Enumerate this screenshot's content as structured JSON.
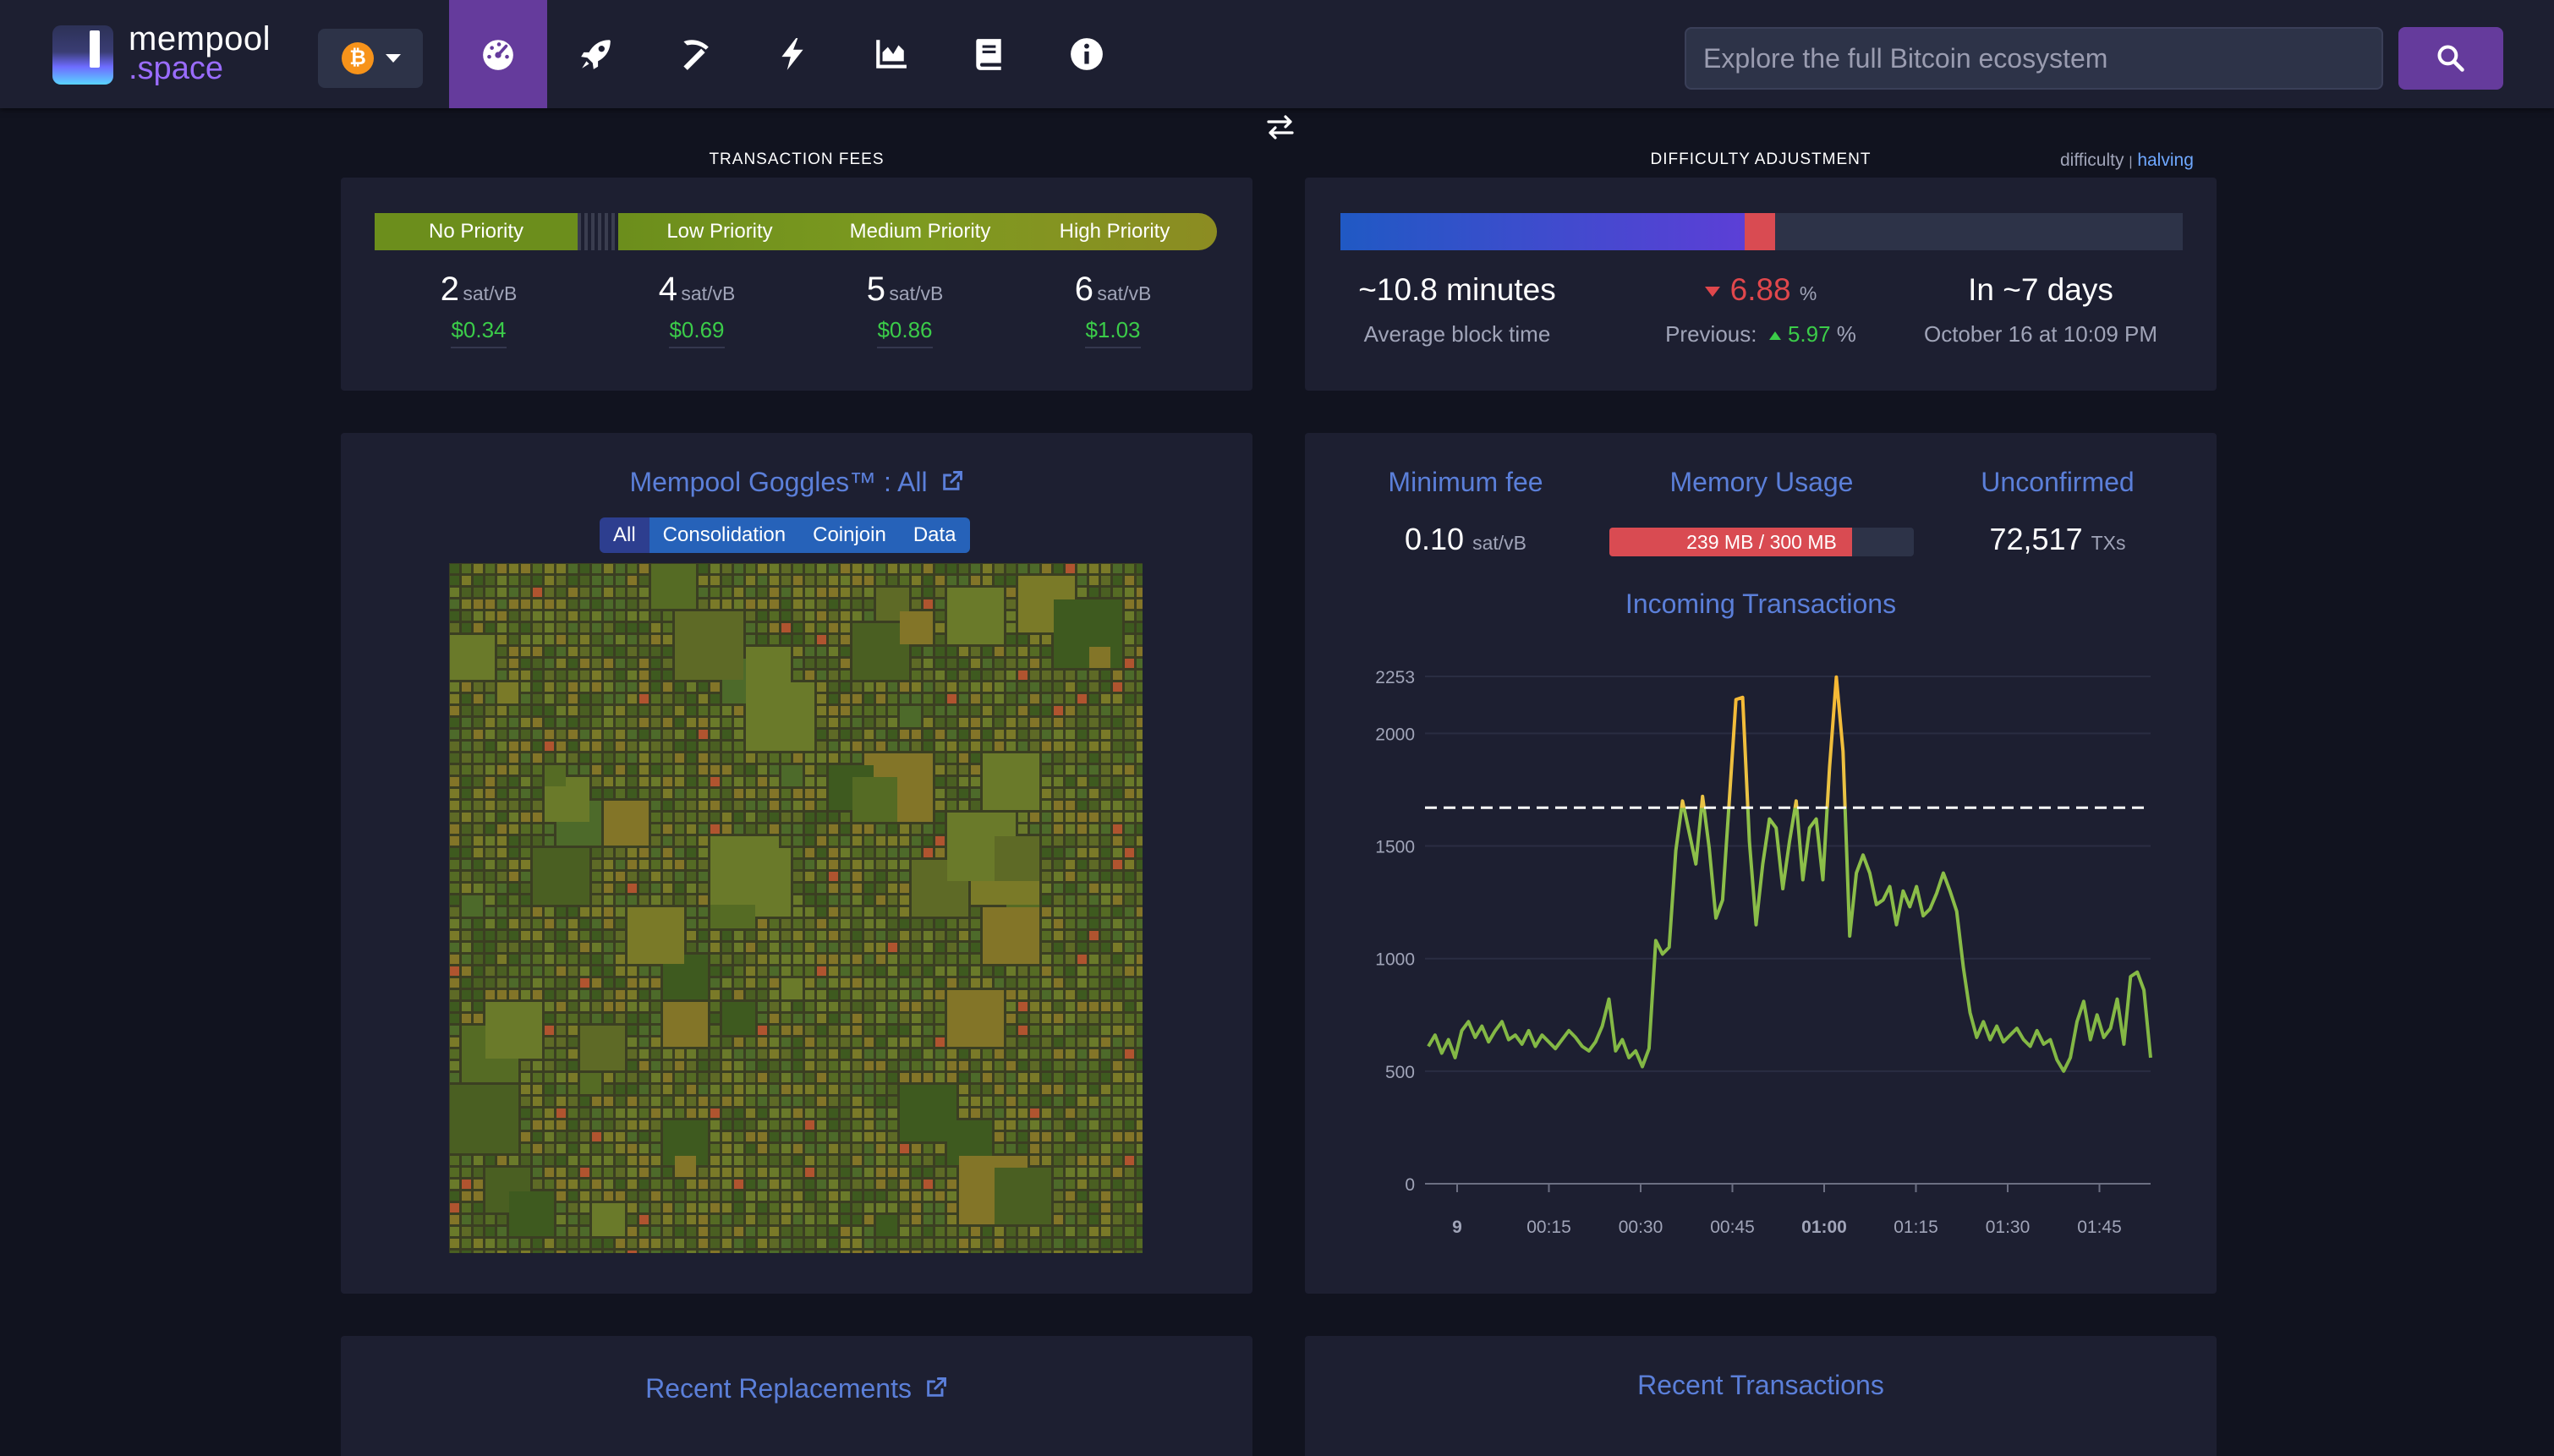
{
  "logo": {
    "line1": "mempool",
    "line2": ".space"
  },
  "network": {
    "symbol": "₿",
    "icon": "bitcoin-icon"
  },
  "nav": {
    "items": [
      {
        "name": "dashboard",
        "icon": "dashboard-icon",
        "active": true
      },
      {
        "name": "mining",
        "icon": "rocket-icon",
        "active": false
      },
      {
        "name": "mining-pools",
        "icon": "pickaxe-icon",
        "active": false
      },
      {
        "name": "lightning",
        "icon": "lightning-icon",
        "active": false
      },
      {
        "name": "graphs",
        "icon": "chart-icon",
        "active": false
      },
      {
        "name": "docs",
        "icon": "book-icon",
        "active": false
      },
      {
        "name": "about",
        "icon": "info-icon",
        "active": false
      }
    ]
  },
  "search": {
    "placeholder": "Explore the full Bitcoin ecosystem",
    "value": ""
  },
  "fees": {
    "title": "TRANSACTION FEES",
    "no_priority_label": "No Priority",
    "low_label": "Low Priority",
    "medium_label": "Medium Priority",
    "high_label": "High Priority",
    "columns": [
      {
        "rate": "2",
        "unit": "sat/vB",
        "usd": "$0.34"
      },
      {
        "rate": "4",
        "unit": "sat/vB",
        "usd": "$0.69"
      },
      {
        "rate": "5",
        "unit": "sat/vB",
        "usd": "$0.86"
      },
      {
        "rate": "6",
        "unit": "sat/vB",
        "usd": "$1.03"
      }
    ]
  },
  "difficulty": {
    "title": "DIFFICULTY ADJUSTMENT",
    "link_difficulty": "difficulty",
    "link_sep": "|",
    "link_halving": "halving",
    "progress_fraction": 0.48,
    "block_time_value": "~10.8 minutes",
    "block_time_label": "Average block time",
    "change_value": "6.88",
    "change_unit": "%",
    "previous_label": "Previous:",
    "previous_value": "5.97",
    "previous_unit": "%",
    "eta_value": "In ~7 days",
    "eta_date": "October 16 at 10:09 PM"
  },
  "goggles": {
    "title": "Mempool Goggles™ : All",
    "tabs": [
      "All",
      "Consolidation",
      "Coinjoin",
      "Data"
    ],
    "selected_tab": "All"
  },
  "stats": {
    "min_fee_label": "Minimum fee",
    "min_fee_value": "0.10",
    "min_fee_unit": "sat/vB",
    "memory_label": "Memory Usage",
    "memory_text": "239 MB / 300 MB",
    "memory_fraction": 0.797,
    "unconfirmed_label": "Unconfirmed",
    "unconfirmed_value": "72,517",
    "unconfirmed_unit": "TXs"
  },
  "chart_data": {
    "type": "line",
    "title": "Incoming Transactions",
    "xlabel": "",
    "ylabel": "",
    "ylim": [
      0,
      2253
    ],
    "yticks": [
      0,
      500,
      1000,
      1500,
      2000,
      2253
    ],
    "xticks": [
      "9",
      "00:15",
      "00:30",
      "00:45",
      "01:00",
      "01:15",
      "01:30",
      "01:45"
    ],
    "threshold": 1670,
    "grid": true,
    "series": [
      {
        "values": [
          610,
          660,
          580,
          640,
          560,
          680,
          720,
          650,
          700,
          630,
          680,
          720,
          640,
          660,
          620,
          680,
          610,
          660,
          630,
          600,
          640,
          680,
          650,
          610,
          590,
          630,
          700,
          820,
          590,
          640,
          560,
          590,
          520,
          600,
          1080,
          1020,
          1050,
          1480,
          1700,
          1560,
          1420,
          1720,
          1490,
          1180,
          1260,
          1700,
          2150,
          2160,
          1520,
          1150,
          1420,
          1620,
          1580,
          1310,
          1520,
          1700,
          1350,
          1580,
          1620,
          1350,
          1850,
          2250,
          1920,
          1100,
          1380,
          1460,
          1380,
          1240,
          1260,
          1320,
          1150,
          1300,
          1230,
          1320,
          1190,
          1220,
          1290,
          1380,
          1300,
          1210,
          960,
          760,
          650,
          720,
          640,
          700,
          630,
          660,
          690,
          640,
          610,
          680,
          620,
          640,
          550,
          500,
          560,
          720,
          810,
          640,
          750,
          650,
          690,
          820,
          620,
          920,
          940,
          860,
          560
        ]
      }
    ]
  },
  "recent_replacements": {
    "title": "Recent Replacements"
  },
  "recent_transactions": {
    "title": "Recent Transactions"
  }
}
